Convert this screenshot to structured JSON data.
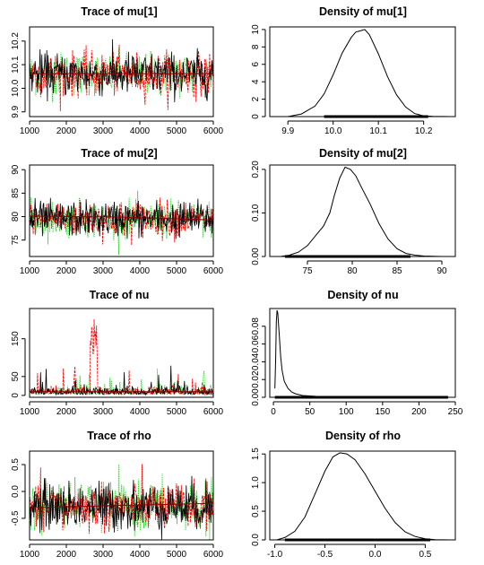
{
  "colors": {
    "chain1": "#000000",
    "chain2": "#ff0000",
    "chain3": "#00cd00",
    "smooth": "#8b0000"
  },
  "chart_data": [
    {
      "type": "line",
      "subtype": "trace",
      "title": "Trace of mu[1]",
      "xlim": [
        1000,
        6000
      ],
      "ylim": [
        9.88,
        10.26
      ],
      "xticks": [
        1000,
        2000,
        3000,
        4000,
        5000,
        6000
      ],
      "yticks": [
        9.9,
        10.0,
        10.1,
        10.2
      ],
      "ytick_labels": [
        "9.9",
        "10.0",
        "10.1",
        "10.2"
      ],
      "chains": [
        {
          "mean": 10.06,
          "sd": 0.045
        },
        {
          "mean": 10.06,
          "sd": 0.045
        },
        {
          "mean": 10.06,
          "sd": 0.045
        }
      ],
      "smooth": [
        [
          1000,
          10.062
        ],
        [
          6000,
          10.062
        ]
      ],
      "xlabel": "",
      "ylabel": ""
    },
    {
      "type": "line",
      "subtype": "density",
      "title": "Density of mu[1]",
      "xlim": [
        9.86,
        10.27
      ],
      "ylim": [
        0,
        10.3
      ],
      "xticks": [
        9.9,
        10.0,
        10.1,
        10.2
      ],
      "xtick_labels": [
        "9.9",
        "10.0",
        "10.1",
        "10.2"
      ],
      "yticks": [
        0,
        2,
        4,
        6,
        8,
        10
      ],
      "ytick_labels": [
        "0",
        "2",
        "4",
        "6",
        "8",
        "10"
      ],
      "x": [
        9.9,
        9.93,
        9.96,
        9.98,
        10.0,
        10.02,
        10.04,
        10.05,
        10.06,
        10.07,
        10.08,
        10.1,
        10.12,
        10.14,
        10.16,
        10.18,
        10.2,
        10.22,
        10.26
      ],
      "y": [
        0,
        0.3,
        1.2,
        2.6,
        4.8,
        7.3,
        9.1,
        9.7,
        9.85,
        10.0,
        9.4,
        7.2,
        4.6,
        2.5,
        1.1,
        0.35,
        0.08,
        0.02,
        0
      ],
      "rug": [
        9.98,
        10.21
      ],
      "xlabel": "",
      "ylabel": ""
    },
    {
      "type": "line",
      "subtype": "trace",
      "title": "Trace of mu[2]",
      "xlim": [
        1000,
        6000
      ],
      "ylim": [
        71.5,
        91
      ],
      "xticks": [
        1000,
        2000,
        3000,
        4000,
        5000,
        6000
      ],
      "yticks": [
        75,
        80,
        85,
        90
      ],
      "ytick_labels": [
        "75",
        "80",
        "85",
        "90"
      ],
      "chains": [
        {
          "mean": 79.5,
          "sd": 1.9
        },
        {
          "mean": 79.5,
          "sd": 1.9
        },
        {
          "mean": 79.5,
          "sd": 1.9
        }
      ],
      "smooth": [
        [
          1000,
          80.1
        ],
        [
          3500,
          79.9
        ],
        [
          6000,
          79.3
        ]
      ],
      "xlabel": "",
      "ylabel": ""
    },
    {
      "type": "line",
      "subtype": "density",
      "title": "Density of mu[2]",
      "xlim": [
        70.8,
        91.5
      ],
      "ylim": [
        0,
        0.21
      ],
      "xticks": [
        75,
        80,
        85,
        90
      ],
      "xtick_labels": [
        "75",
        "80",
        "85",
        "90"
      ],
      "yticks": [
        0.0,
        0.1,
        0.2
      ],
      "ytick_labels": [
        "0.00",
        "0.10",
        "0.20"
      ],
      "x": [
        72,
        73,
        74,
        75,
        76,
        76.8,
        77.5,
        78,
        78.6,
        79.2,
        79.8,
        80.4,
        81,
        82,
        83,
        84,
        85,
        86,
        87,
        88,
        90
      ],
      "y": [
        0,
        0.003,
        0.01,
        0.025,
        0.05,
        0.07,
        0.1,
        0.14,
        0.18,
        0.205,
        0.2,
        0.185,
        0.16,
        0.12,
        0.075,
        0.04,
        0.018,
        0.007,
        0.003,
        0.001,
        0
      ],
      "rug": [
        72.5,
        86.5
      ],
      "xlabel": "",
      "ylabel": ""
    },
    {
      "type": "line",
      "subtype": "trace",
      "title": "Trace of nu",
      "xlim": [
        1000,
        6000
      ],
      "ylim": [
        -5,
        230
      ],
      "xticks": [
        1000,
        2000,
        3000,
        4000,
        5000,
        6000
      ],
      "yticks": [
        0,
        50,
        150
      ],
      "ytick_labels": [
        "0",
        "50",
        "150"
      ],
      "chains": [
        {
          "mean": 12,
          "sd": 10
        },
        {
          "mean": 12,
          "sd": 10
        },
        {
          "mean": 12,
          "sd": 10
        }
      ],
      "smooth": [
        [
          1000,
          10
        ],
        [
          6000,
          10
        ]
      ],
      "xlabel": "",
      "ylabel": ""
    },
    {
      "type": "line",
      "subtype": "density",
      "title": "Density of nu",
      "xlim": [
        -5,
        250
      ],
      "ylim": [
        0,
        0.1
      ],
      "xticks": [
        0,
        50,
        100,
        150,
        200,
        250
      ],
      "xtick_labels": [
        "0",
        "50",
        "100",
        "150",
        "200",
        "250"
      ],
      "yticks": [
        0.0,
        0.02,
        0.04,
        0.06,
        0.08
      ],
      "ytick_labels": [
        "0.00",
        "0.02",
        "0.04",
        "0.06",
        "0.08"
      ],
      "x": [
        2,
        3,
        4,
        5,
        6,
        8,
        10,
        12,
        15,
        20,
        25,
        30,
        40,
        60,
        100,
        243
      ],
      "y": [
        0.01,
        0.04,
        0.085,
        0.098,
        0.095,
        0.07,
        0.045,
        0.03,
        0.018,
        0.01,
        0.006,
        0.004,
        0.002,
        0.001,
        0.0003,
        0
      ],
      "rug": [
        2,
        240
      ],
      "xlabel": "",
      "ylabel": ""
    },
    {
      "type": "line",
      "subtype": "trace",
      "title": "Trace of rho",
      "xlim": [
        1000,
        6000
      ],
      "ylim": [
        -0.9,
        0.75
      ],
      "xticks": [
        1000,
        2000,
        3000,
        4000,
        5000,
        6000
      ],
      "yticks": [
        -0.5,
        0.0,
        0.5
      ],
      "ytick_labels": [
        "-0.5",
        "0.0",
        "0.5"
      ],
      "chains": [
        {
          "mean": -0.28,
          "sd": 0.22
        },
        {
          "mean": -0.28,
          "sd": 0.22
        },
        {
          "mean": -0.28,
          "sd": 0.22
        }
      ],
      "smooth": [
        [
          1000,
          -0.3
        ],
        [
          6000,
          -0.22
        ]
      ],
      "xlabel": "",
      "ylabel": ""
    },
    {
      "type": "line",
      "subtype": "density",
      "title": "Density of rho",
      "xlim": [
        -1.05,
        0.8
      ],
      "ylim": [
        0,
        1.55
      ],
      "xticks": [
        -1.0,
        -0.5,
        0.0,
        0.5
      ],
      "xtick_labels": [
        "-1.0",
        "-0.5",
        "0.0",
        "0.5"
      ],
      "yticks": [
        0.0,
        0.5,
        1.0,
        1.5
      ],
      "ytick_labels": [
        "0.0",
        "0.5",
        "1.0",
        "1.5"
      ],
      "x": [
        -0.98,
        -0.9,
        -0.8,
        -0.7,
        -0.6,
        -0.5,
        -0.42,
        -0.35,
        -0.28,
        -0.2,
        -0.1,
        0.0,
        0.1,
        0.2,
        0.3,
        0.4,
        0.5,
        0.6,
        0.75
      ],
      "y": [
        0,
        0.04,
        0.15,
        0.4,
        0.8,
        1.2,
        1.45,
        1.52,
        1.5,
        1.4,
        1.15,
        0.85,
        0.55,
        0.3,
        0.14,
        0.06,
        0.02,
        0.005,
        0
      ],
      "rug": [
        -0.9,
        0.55
      ],
      "xlabel": "",
      "ylabel": ""
    }
  ]
}
